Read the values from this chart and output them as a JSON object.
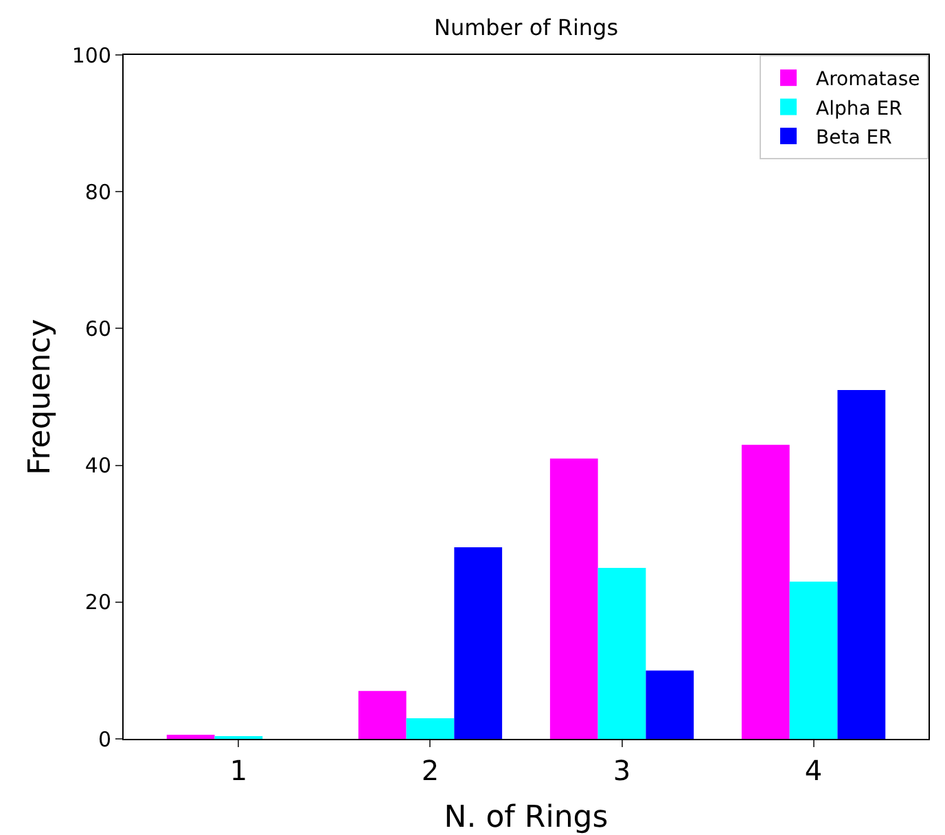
{
  "chart_data": {
    "type": "bar",
    "title": "Number of Rings",
    "xlabel": "N. of Rings",
    "ylabel": "Frequency",
    "categories": [
      "1",
      "2",
      "3",
      "4"
    ],
    "series": [
      {
        "name": "Aromatase",
        "color": "#ff00ff",
        "values": [
          0.6,
          7,
          41,
          43
        ]
      },
      {
        "name": "Alpha ER",
        "color": "#00ffff",
        "values": [
          0.4,
          3,
          25,
          23
        ]
      },
      {
        "name": "Beta ER",
        "color": "#0000ff",
        "values": [
          0,
          28,
          10,
          51
        ]
      }
    ],
    "ylim": [
      0,
      100
    ],
    "yticks": [
      0,
      20,
      40,
      60,
      80,
      100
    ],
    "grid": false,
    "legend": "top right"
  }
}
